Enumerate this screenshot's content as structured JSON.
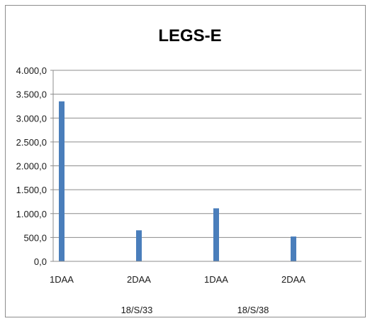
{
  "chart_data": {
    "type": "bar",
    "title": "LEGS-E",
    "categories": [
      "1DAA",
      "2DAA",
      "1DAA",
      "2DAA"
    ],
    "groups": [
      "18/S/33",
      "18/S/38"
    ],
    "values": [
      3350,
      650,
      1110,
      520
    ],
    "yticks": [
      "0,0",
      "500,0",
      "1.000,0",
      "1.500,0",
      "2.000,0",
      "2.500,0",
      "3.000,0",
      "3.500,0",
      "4.000,0"
    ],
    "ylim": [
      0,
      4000
    ],
    "grid": true,
    "legend": "none",
    "bar_color": "#4a7ebb"
  }
}
